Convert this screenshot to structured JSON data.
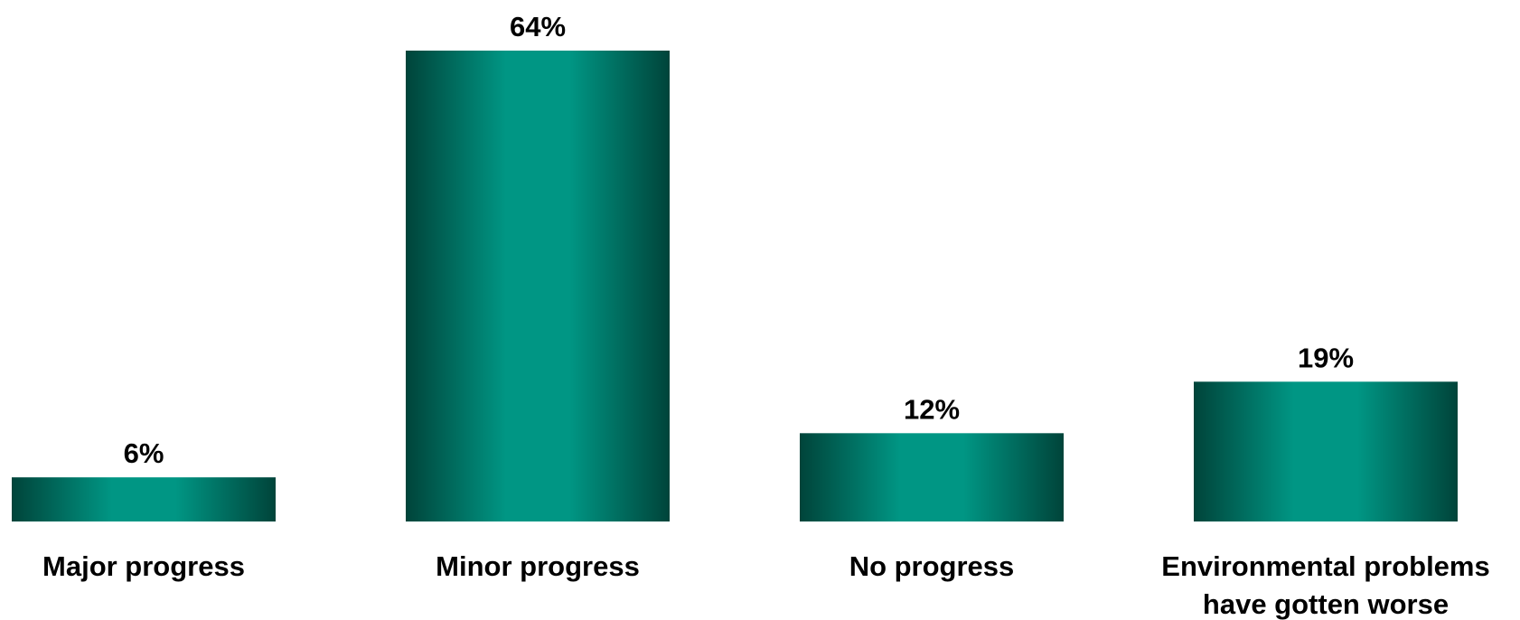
{
  "chart_data": {
    "type": "bar",
    "categories": [
      [
        "Major progress"
      ],
      [
        "Minor progress"
      ],
      [
        "No progress"
      ],
      [
        "Environmental problems",
        "have gotten worse"
      ]
    ],
    "values": [
      6,
      64,
      12,
      19
    ],
    "value_suffix": "%",
    "ylim": [
      0,
      64
    ],
    "grid": false,
    "legend": "none",
    "colors": {
      "bar_edge": "#00443a",
      "bar_center": "#009684"
    }
  }
}
